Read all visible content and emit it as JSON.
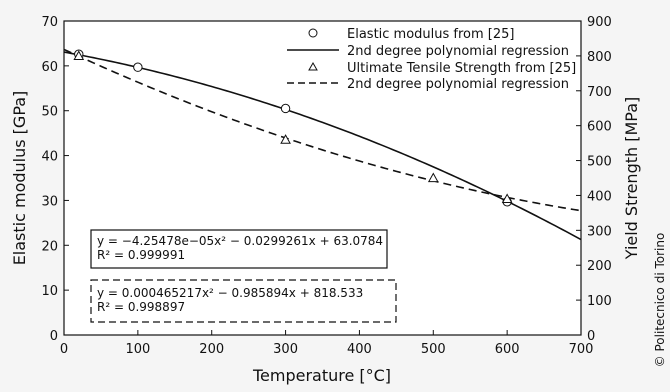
{
  "chart_data": {
    "type": "scatter",
    "xlabel": "Temperature [°C]",
    "ylabel_left": "Elastic modulus [GPa]",
    "ylabel_right": "Yield Strength [MPa]",
    "xlim": [
      0,
      700
    ],
    "ylim_left": [
      0,
      70
    ],
    "ylim_right": [
      0,
      900
    ],
    "x_ticks": [
      0,
      100,
      200,
      300,
      400,
      500,
      600,
      700
    ],
    "y_left_ticks": [
      0,
      10,
      20,
      30,
      40,
      50,
      60,
      70
    ],
    "y_right_ticks": [
      0,
      100,
      200,
      300,
      400,
      500,
      600,
      700,
      800,
      900
    ],
    "grid": false,
    "legend_position": "top-right",
    "series": [
      {
        "name": "Elastic modulus from [25]",
        "axis": "left",
        "marker": "circle",
        "x": [
          20,
          100,
          300,
          600
        ],
        "y": [
          62.6,
          59.7,
          50.5,
          29.7
        ]
      },
      {
        "name": "2nd degree polynomial regression",
        "axis": "left",
        "line": "solid",
        "coefficients": [
          -4.25478e-05,
          -0.0299261,
          63.0784
        ],
        "x_range": [
          0,
          700
        ]
      },
      {
        "name": "Ultimate Tensile Strength from [25]",
        "axis": "right",
        "marker": "triangle",
        "x": [
          20,
          300,
          500,
          600
        ],
        "y": [
          800,
          560,
          450,
          390
        ]
      },
      {
        "name": "2nd degree polynomial regression",
        "axis": "right",
        "line": "dashed",
        "coefficients": [
          0.000465217,
          -0.985894,
          818.533
        ],
        "x_range": [
          0,
          700
        ]
      }
    ],
    "annotations": [
      {
        "style": "solid",
        "line1": "y = −4.25478e−05x² − 0.0299261x + 63.0784",
        "line2": "R² = 0.999991"
      },
      {
        "style": "dashed",
        "line1": "y = 0.000465217x² − 0.985894x + 818.533",
        "line2": "R² = 0.998897"
      }
    ]
  },
  "credit": "© Politecnico di Torino"
}
